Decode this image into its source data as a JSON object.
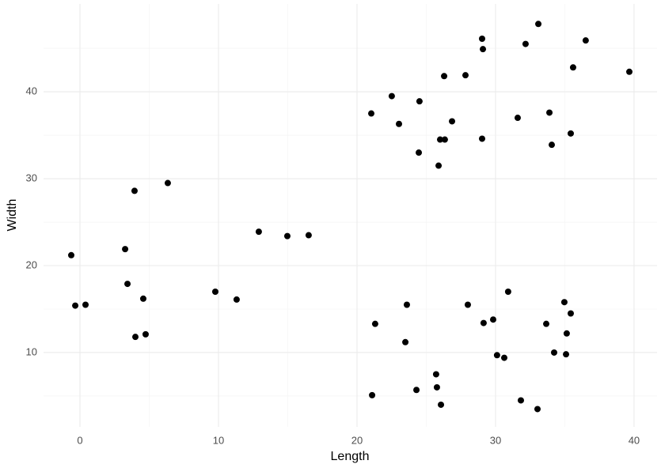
{
  "chart_data": {
    "type": "scatter",
    "x_label": "Length",
    "y_label": "Width",
    "color": "#000000",
    "grid": true,
    "xlim": [
      -2.63,
      41.66
    ],
    "ylim": [
      1.45,
      50.1
    ],
    "xticks": [
      0,
      10,
      20,
      30,
      40
    ],
    "yticks": [
      10,
      20,
      30,
      40
    ],
    "x": [
      -0.63,
      -0.34,
      0.4,
      3.26,
      3.43,
      3.94,
      4.0,
      4.57,
      4.74,
      6.34,
      9.77,
      11.31,
      12.91,
      14.97,
      16.51,
      21.03,
      21.31,
      21.09,
      22.51,
      23.03,
      23.49,
      23.6,
      24.29,
      24.51,
      24.46,
      25.71,
      25.77,
      25.89,
      26.0,
      26.06,
      26.34,
      26.29,
      26.86,
      27.83,
      28.0,
      29.03,
      29.03,
      29.09,
      29.14,
      29.83,
      30.11,
      30.63,
      30.91,
      31.6,
      31.83,
      32.17,
      33.03,
      33.09,
      33.66,
      33.89,
      34.06,
      34.23,
      34.97,
      35.09,
      35.14,
      35.43,
      35.43,
      35.6,
      36.51,
      39.66
    ],
    "values": [
      21.2,
      15.4,
      15.5,
      21.9,
      17.9,
      28.6,
      11.8,
      16.2,
      12.1,
      29.5,
      17.0,
      16.1,
      23.9,
      23.4,
      23.5,
      37.5,
      13.3,
      5.1,
      39.5,
      36.3,
      11.2,
      15.5,
      5.7,
      38.9,
      33.0,
      7.5,
      6.0,
      31.5,
      34.5,
      4.0,
      34.5,
      41.8,
      36.6,
      41.9,
      15.5,
      34.6,
      46.1,
      44.9,
      13.4,
      13.8,
      9.7,
      9.4,
      17.0,
      37.0,
      4.5,
      45.5,
      3.5,
      47.8,
      13.3,
      37.6,
      33.9,
      10.0,
      15.8,
      9.8,
      12.2,
      14.5,
      35.2,
      42.8,
      45.9,
      42.3
    ]
  }
}
